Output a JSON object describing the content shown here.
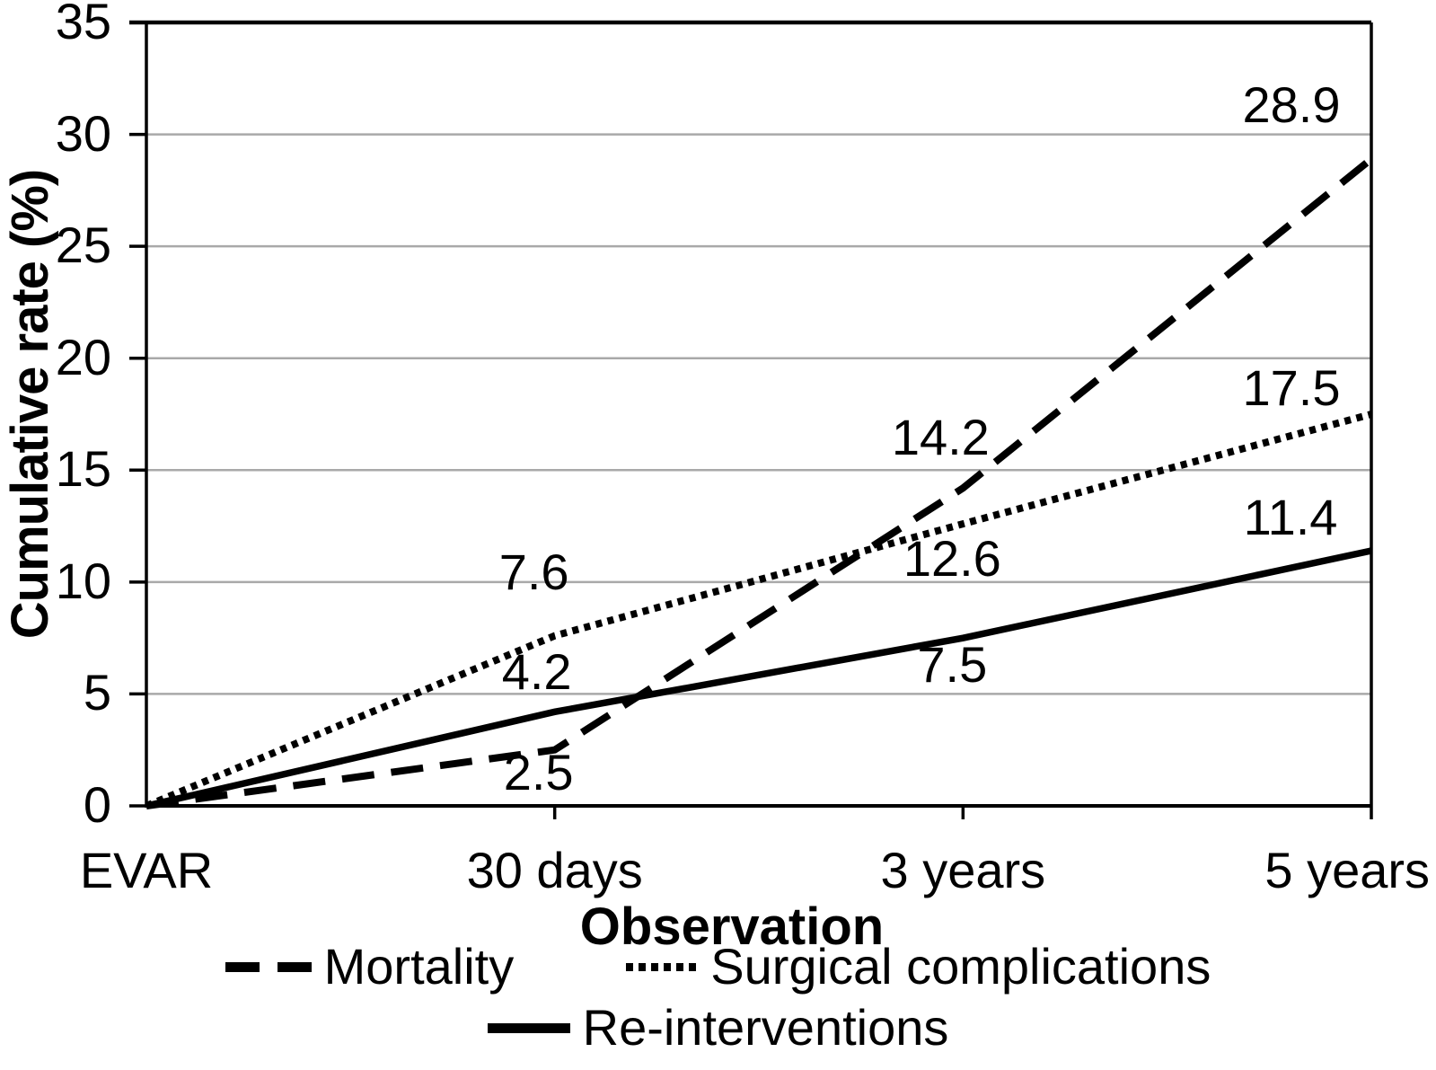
{
  "chart_data": {
    "type": "line",
    "title": "",
    "xlabel": "Observation",
    "ylabel": "Cumulative rate (%)",
    "categories": [
      "EVAR",
      "30 days",
      "3 years",
      "5 years"
    ],
    "ylim": [
      0,
      35
    ],
    "yticks": [
      0,
      5,
      10,
      15,
      20,
      25,
      30,
      35
    ],
    "grid": "horizontal",
    "legend_position": "bottom",
    "series": [
      {
        "name": "Mortality",
        "style": "dashed",
        "values": [
          0,
          2.5,
          14.2,
          28.9
        ],
        "point_labels": [
          "",
          "2.5",
          "14.2",
          "28.9"
        ]
      },
      {
        "name": "Surgical complications",
        "style": "dotted",
        "values": [
          0,
          7.6,
          12.6,
          17.5
        ],
        "point_labels": [
          "",
          "7.6",
          "12.6",
          "17.5"
        ]
      },
      {
        "name": "Re-interventions",
        "style": "solid",
        "values": [
          0,
          4.2,
          7.5,
          11.4
        ],
        "point_labels": [
          "",
          "4.2",
          "7.5",
          "11.4"
        ]
      }
    ],
    "colors": {
      "line": "#000000",
      "grid": "#a9a9a9",
      "background": "#ffffff",
      "text": "#000000"
    }
  }
}
